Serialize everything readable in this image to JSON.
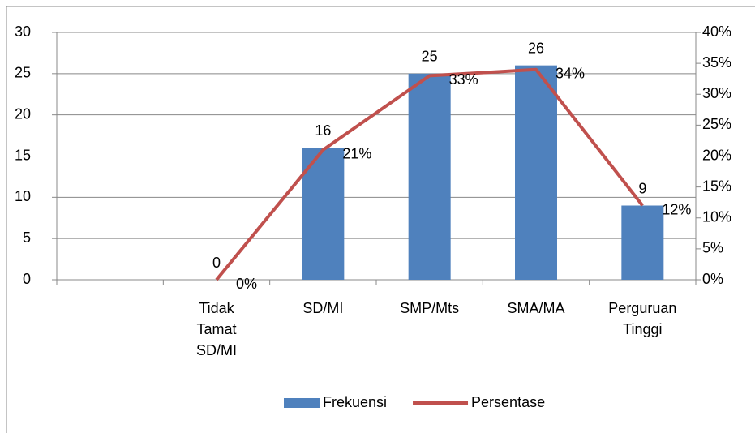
{
  "chart_data": {
    "type": "bar_line",
    "categories": [
      null,
      "Tidak\nTamat\nSD/MI",
      "SD/MI",
      "SMP/Mts",
      "SMA/MA",
      "Perguruan\nTinggi"
    ],
    "series": [
      {
        "name": "Frekuensi",
        "type": "bar",
        "color": "#4f81bd",
        "values": [
          null,
          0,
          16,
          25,
          26,
          9
        ]
      },
      {
        "name": "Persentase",
        "type": "line",
        "axis": "y2",
        "color": "#c0504d",
        "values": [
          null,
          0,
          21,
          33,
          34,
          12
        ],
        "value_labels": [
          null,
          "0%",
          "21%",
          "33%",
          "34%",
          "12%"
        ]
      }
    ],
    "ylim": [
      0,
      30
    ],
    "yticks": [
      0,
      5,
      10,
      15,
      20,
      25,
      30
    ],
    "y2lim": [
      0,
      40
    ],
    "y2ticks": [
      {
        "value": 0,
        "label": "0%"
      },
      {
        "value": 5,
        "label": "5%"
      },
      {
        "value": 10,
        "label": "10%"
      },
      {
        "value": 15,
        "label": "15%"
      },
      {
        "value": 20,
        "label": "20%"
      },
      {
        "value": 25,
        "label": "25%"
      },
      {
        "value": 30,
        "label": "30%"
      },
      {
        "value": 35,
        "label": "35%"
      },
      {
        "value": 40,
        "label": "40%"
      }
    ],
    "grid": true,
    "legend": "bottom"
  }
}
